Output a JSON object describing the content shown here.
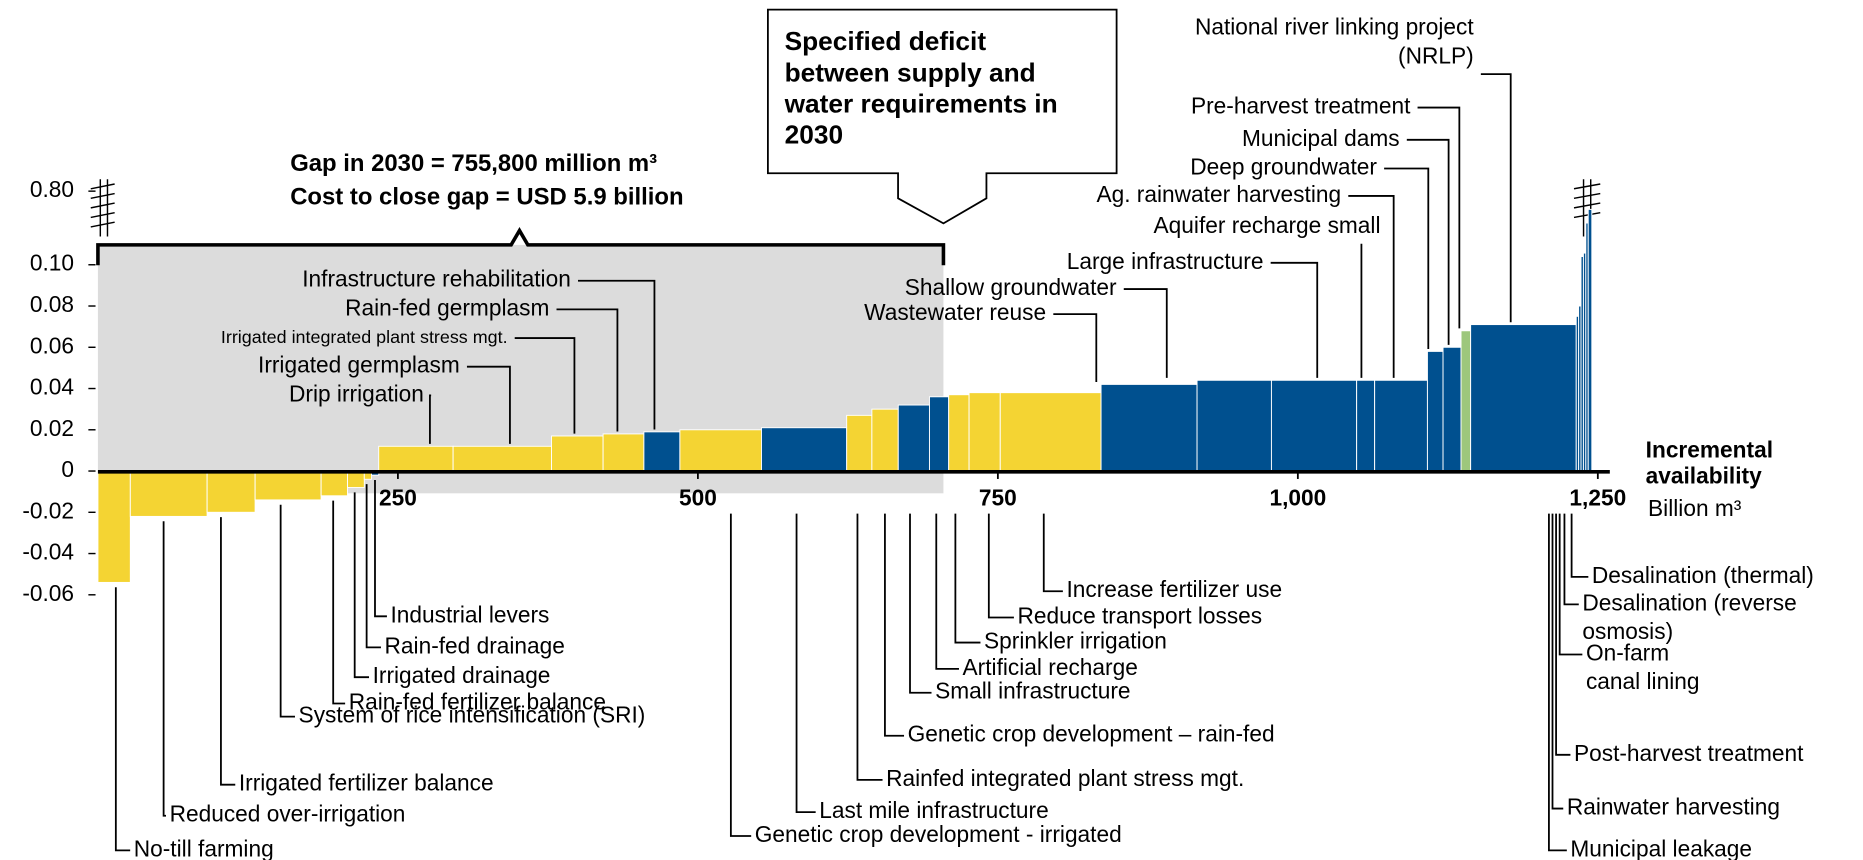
{
  "chart_data": {
    "type": "cost_curve",
    "annotations": {
      "gap": "Gap in 2030 = 755,800 million m³",
      "cost": "Cost to close gap = USD 5.9 billion",
      "callout": "Specified deficit between supply and water requirements in 2030"
    },
    "x_label": "Incremental availability",
    "x_unit": "Billion m³",
    "xlim": [
      0,
      1260
    ],
    "xticks": [
      250,
      500,
      750,
      {
        "value": 1000,
        "label": "1,000"
      },
      {
        "value": 1250,
        "label": "1,250"
      }
    ],
    "ylim": [
      -0.06,
      0.8
    ],
    "yticks": [
      {
        "value": 0.8,
        "label": "0.80"
      },
      {
        "value": 0.1,
        "label": "0.10"
      },
      {
        "value": 0.08,
        "label": "0.08"
      },
      {
        "value": 0.06,
        "label": "0.06"
      },
      {
        "value": 0.04,
        "label": "0.04"
      },
      {
        "value": 0.02,
        "label": "0.02"
      },
      0,
      {
        "value": -0.02,
        "label": "-0.02"
      },
      {
        "value": -0.04,
        "label": "-0.04"
      },
      {
        "value": -0.06,
        "label": "-0.06"
      }
    ],
    "categories": [
      "No-till farming",
      "Reduced over-irrigation",
      "Irrigated fertilizer balance",
      "System of rice intensification (SRI)",
      "Rain-fed fertilizer balance",
      "Irrigated drainage",
      "Rain-fed drainage",
      "Industrial levers",
      "Drip irrigation",
      "Irrigated germplasm",
      "Irrigated integrated plant stress mgt.",
      "Rain-fed germplasm",
      "Infrastructure rehabilitation",
      "Genetic crop development - irrigated",
      "Last mile infrastructure",
      "Rainfed integrated plant stress mgt.",
      "Genetic crop development – rain-fed",
      "Small infrastructure",
      "Artificial recharge",
      "Sprinkler irrigation",
      "Reduce transport losses",
      "Increase fertilizer use",
      "Wastewater reuse",
      "Shallow groundwater",
      "Large infrastructure",
      "Aquifer recharge small",
      "Ag. rainwater harvesting",
      "Deep groundwater",
      "Municipal dams",
      "Pre-harvest treatment",
      "National river linking project (NRLP)",
      "Municipal leakage",
      "Rainwater harvesting",
      "Post-harvest treatment",
      "On-farm canal lining",
      "Desalination (reverse osmosis)",
      "Desalination (thermal)"
    ],
    "widths": [
      27,
      64,
      40,
      55,
      22,
      14,
      6,
      6,
      62,
      82,
      43,
      34,
      30,
      68,
      71,
      21,
      22,
      26,
      16,
      17,
      26,
      84,
      80,
      62,
      71,
      15,
      44,
      13,
      15,
      8,
      88,
      2,
      2,
      2,
      2,
      2,
      3
    ],
    "values": [
      -0.054,
      -0.022,
      -0.02,
      -0.014,
      -0.012,
      -0.008,
      -0.004,
      -0.002,
      0.012,
      0.012,
      0.017,
      0.018,
      0.019,
      0.02,
      0.021,
      0.027,
      0.03,
      0.032,
      0.036,
      0.037,
      0.038,
      0.038,
      0.042,
      0.044,
      0.044,
      0.044,
      0.044,
      0.058,
      0.06,
      0.068,
      0.071,
      0.075,
      0.08,
      0.104,
      0.12,
      0.45,
      0.6
    ],
    "colors": [
      "#f4d433",
      "#f4d433",
      "#f4d433",
      "#f4d433",
      "#f4d433",
      "#f4d433",
      "#f4d433",
      "#00508f",
      "#f4d433",
      "#f4d433",
      "#f4d433",
      "#f4d433",
      "#00508f",
      "#f4d433",
      "#00508f",
      "#f4d433",
      "#f4d433",
      "#00508f",
      "#00508f",
      "#f4d433",
      "#f4d433",
      "#f4d433",
      "#00508f",
      "#00508f",
      "#00508f",
      "#00508f",
      "#00508f",
      "#00508f",
      "#00508f",
      "#9dc77c",
      "#00508f",
      "#00508f",
      "#00508f",
      "#00508f",
      "#00508f",
      "#00508f",
      "#00508f"
    ]
  }
}
